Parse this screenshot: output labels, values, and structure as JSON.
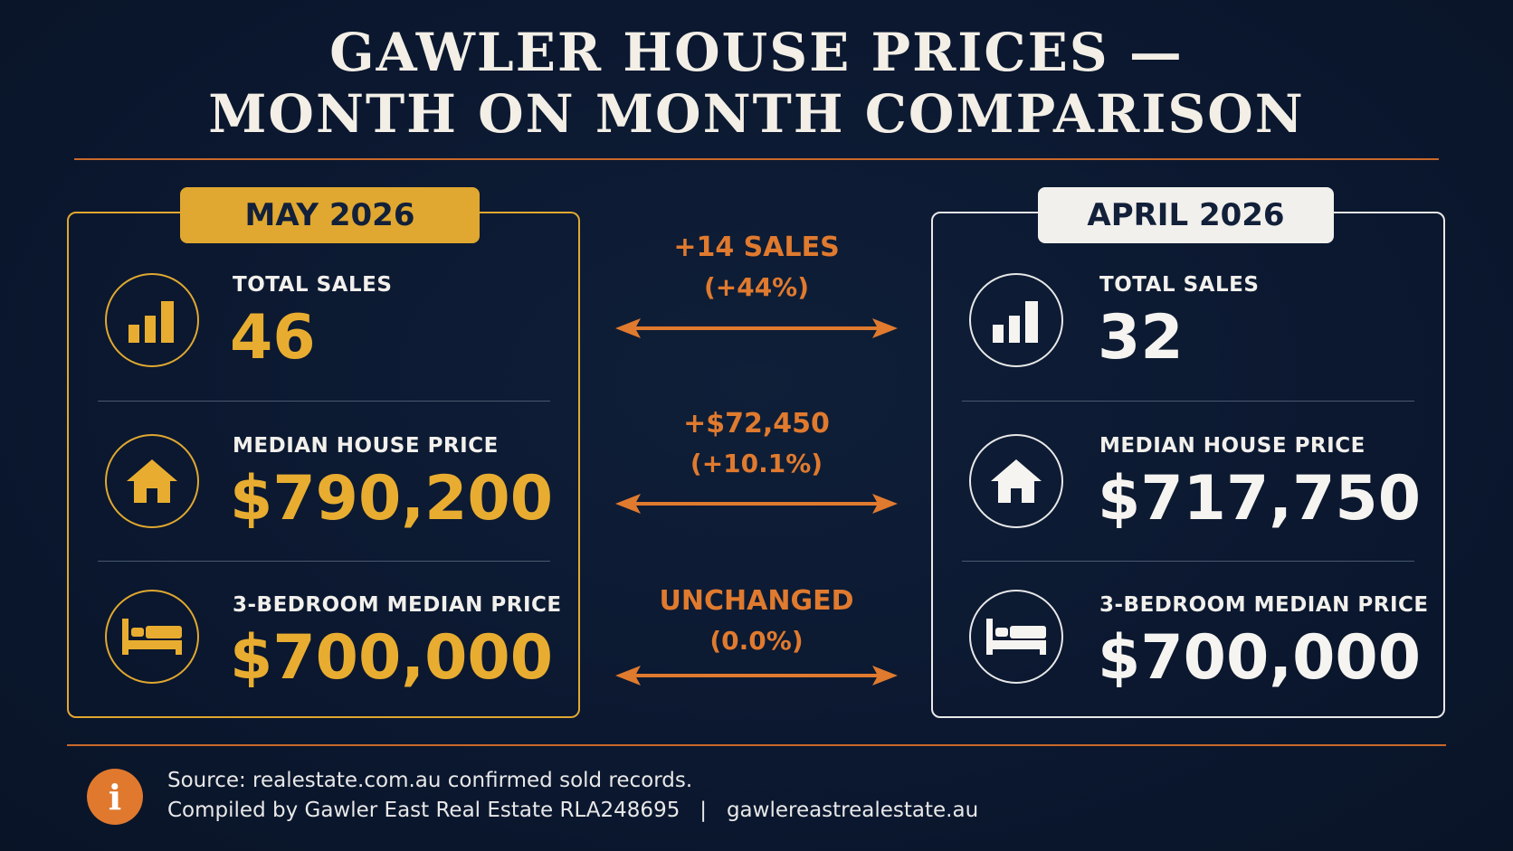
{
  "title": {
    "line1": "GAWLER HOUSE PRICES —",
    "line2": "MONTH ON MONTH COMPARISON"
  },
  "colors": {
    "background": "#0b1830",
    "gold": "#e0a830",
    "orange": "#e07a2e",
    "white": "#f2f0ec"
  },
  "left": {
    "period": "MAY 2026",
    "rows": [
      {
        "icon": "bar-chart-icon",
        "label": "TOTAL SALES",
        "value": "46"
      },
      {
        "icon": "house-icon",
        "label": "MEDIAN HOUSE PRICE",
        "value": "$790,200"
      },
      {
        "icon": "bed-icon",
        "label": "3-BEDROOM MEDIAN PRICE",
        "value": "$700,000"
      }
    ]
  },
  "right": {
    "period": "APRIL 2026",
    "rows": [
      {
        "icon": "bar-chart-icon",
        "label": "TOTAL SALES",
        "value": "32"
      },
      {
        "icon": "house-icon",
        "label": "MEDIAN HOUSE PRICE",
        "value": "$717,750"
      },
      {
        "icon": "bed-icon",
        "label": "3-BEDROOM MEDIAN PRICE",
        "value": "$700,000"
      }
    ]
  },
  "changes": [
    {
      "change": "+14 SALES",
      "percent": "(+44%)"
    },
    {
      "change": "+$72,450",
      "percent": "(+10.1%)"
    },
    {
      "change": "UNCHANGED",
      "percent": "(0.0%)"
    }
  ],
  "footer": {
    "source": "Source: realestate.com.au confirmed sold records.",
    "compiled": "Compiled by Gawler East Real Estate RLA248695   |   gawlereastrealestate.au"
  }
}
